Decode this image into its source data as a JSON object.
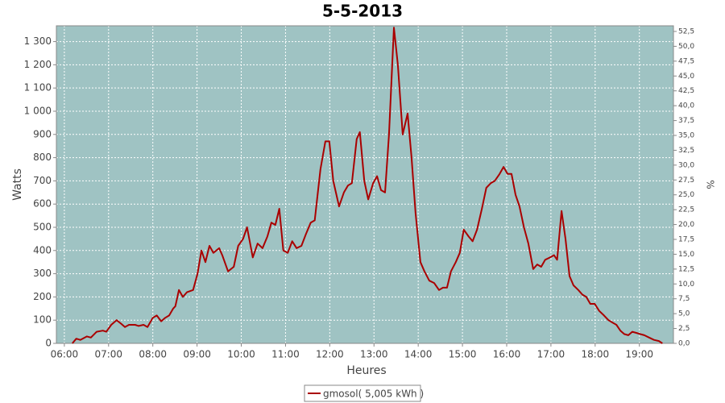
{
  "chart_data": {
    "type": "line",
    "title": "5-5-2013",
    "x_label": "Heures",
    "y_label": "Watts",
    "y2_label": "%",
    "x": [
      6.18,
      6.27,
      6.36,
      6.51,
      6.6,
      6.73,
      6.87,
      6.95,
      7.06,
      7.18,
      7.28,
      7.37,
      7.46,
      7.6,
      7.68,
      7.79,
      7.88,
      8.0,
      8.09,
      8.19,
      8.28,
      8.37,
      8.46,
      8.51,
      8.59,
      8.68,
      8.77,
      8.91,
      9.01,
      9.1,
      9.19,
      9.28,
      9.37,
      9.5,
      9.57,
      9.7,
      9.83,
      9.93,
      10.04,
      10.13,
      10.26,
      10.37,
      10.48,
      10.59,
      10.68,
      10.77,
      10.86,
      10.95,
      11.05,
      11.15,
      11.25,
      11.36,
      11.46,
      11.57,
      11.66,
      11.79,
      11.9,
      11.99,
      12.08,
      12.21,
      12.32,
      12.41,
      12.5,
      12.61,
      12.68,
      12.78,
      12.87,
      12.98,
      13.07,
      13.16,
      13.25,
      13.34,
      13.45,
      13.54,
      13.65,
      13.76,
      13.85,
      13.94,
      14.05,
      14.14,
      14.25,
      14.36,
      14.47,
      14.56,
      14.65,
      14.74,
      14.85,
      14.94,
      15.03,
      15.14,
      15.23,
      15.33,
      15.44,
      15.54,
      15.64,
      15.73,
      15.84,
      15.93,
      16.02,
      16.11,
      16.2,
      16.29,
      16.39,
      16.49,
      16.6,
      16.69,
      16.78,
      16.87,
      16.98,
      17.07,
      17.14,
      17.24,
      17.33,
      17.42,
      17.51,
      17.62,
      17.71,
      17.8,
      17.89,
      17.99,
      18.09,
      18.2,
      18.3,
      18.39,
      18.48,
      18.57,
      18.66,
      18.75,
      18.84,
      18.93,
      19.02,
      19.11,
      19.22,
      19.33,
      19.44,
      19.52
    ],
    "series": [
      {
        "name": "gmosol( 5,005 kWh )",
        "color": "#aa0000",
        "values": [
          0,
          20,
          15,
          30,
          25,
          50,
          55,
          50,
          80,
          100,
          85,
          70,
          80,
          80,
          75,
          80,
          70,
          110,
          120,
          95,
          110,
          120,
          150,
          160,
          230,
          200,
          220,
          230,
          300,
          400,
          350,
          420,
          390,
          410,
          380,
          310,
          330,
          420,
          450,
          500,
          370,
          430,
          410,
          460,
          520,
          510,
          580,
          400,
          390,
          440,
          410,
          420,
          470,
          520,
          530,
          750,
          870,
          870,
          700,
          590,
          650,
          680,
          690,
          880,
          910,
          700,
          620,
          690,
          720,
          660,
          650,
          900,
          1360,
          1200,
          900,
          990,
          800,
          560,
          350,
          310,
          270,
          260,
          230,
          240,
          240,
          310,
          350,
          390,
          490,
          460,
          440,
          490,
          580,
          670,
          690,
          700,
          730,
          760,
          730,
          730,
          640,
          590,
          500,
          430,
          320,
          340,
          330,
          360,
          370,
          380,
          360,
          570,
          450,
          290,
          250,
          230,
          210,
          200,
          170,
          170,
          140,
          120,
          100,
          90,
          80,
          55,
          40,
          35,
          50,
          45,
          40,
          35,
          25,
          15,
          10,
          0
        ]
      }
    ],
    "xlim": [
      5.82,
      19.77
    ],
    "xticks": [
      {
        "value": 6,
        "label": "06:00"
      },
      {
        "value": 7,
        "label": "07:00"
      },
      {
        "value": 8,
        "label": "08:00"
      },
      {
        "value": 9,
        "label": "09:00"
      },
      {
        "value": 10,
        "label": "10:00"
      },
      {
        "value": 11,
        "label": "11:00"
      },
      {
        "value": 12,
        "label": "12:00"
      },
      {
        "value": 13,
        "label": "13:00"
      },
      {
        "value": 14,
        "label": "14:00"
      },
      {
        "value": 15,
        "label": "15:00"
      },
      {
        "value": 16,
        "label": "16:00"
      },
      {
        "value": 17,
        "label": "17:00"
      },
      {
        "value": 18,
        "label": "18:00"
      },
      {
        "value": 19,
        "label": "19:00"
      }
    ],
    "ylim": [
      0,
      1368
    ],
    "yticks": [
      0,
      100,
      200,
      300,
      400,
      500,
      600,
      700,
      800,
      900,
      {
        "value": 1000,
        "label": "1 000"
      },
      {
        "value": 1100,
        "label": "1 100"
      },
      {
        "value": 1200,
        "label": "1 200"
      },
      {
        "value": 1300,
        "label": "1 300"
      }
    ],
    "y2lim": [
      0,
      53.45
    ],
    "y2ticks": [
      {
        "value": 0,
        "label": "0,0"
      },
      {
        "value": 2.5,
        "label": "2,5"
      },
      {
        "value": 5,
        "label": "5,0"
      },
      {
        "value": 7.5,
        "label": "7,5"
      },
      {
        "value": 10,
        "label": "10,0"
      },
      {
        "value": 12.5,
        "label": "12,5"
      },
      {
        "value": 15,
        "label": "15,0"
      },
      {
        "value": 17.5,
        "label": "17,5"
      },
      {
        "value": 20,
        "label": "20,0"
      },
      {
        "value": 22.5,
        "label": "22,5"
      },
      {
        "value": 25,
        "label": "25,0"
      },
      {
        "value": 27.5,
        "label": "27,5"
      },
      {
        "value": 30,
        "label": "30,0"
      },
      {
        "value": 32.5,
        "label": "32,5"
      },
      {
        "value": 35,
        "label": "35,0"
      },
      {
        "value": 37.5,
        "label": "37,5"
      },
      {
        "value": 40,
        "label": "40,0"
      },
      {
        "value": 42.5,
        "label": "42,5"
      },
      {
        "value": 45,
        "label": "45,0"
      },
      {
        "value": 47.5,
        "label": "47,5"
      },
      {
        "value": 50,
        "label": "50,0"
      },
      {
        "value": 52.5,
        "label": "52,5"
      }
    ],
    "grid": true,
    "plot_background": "#9fc3c3"
  }
}
